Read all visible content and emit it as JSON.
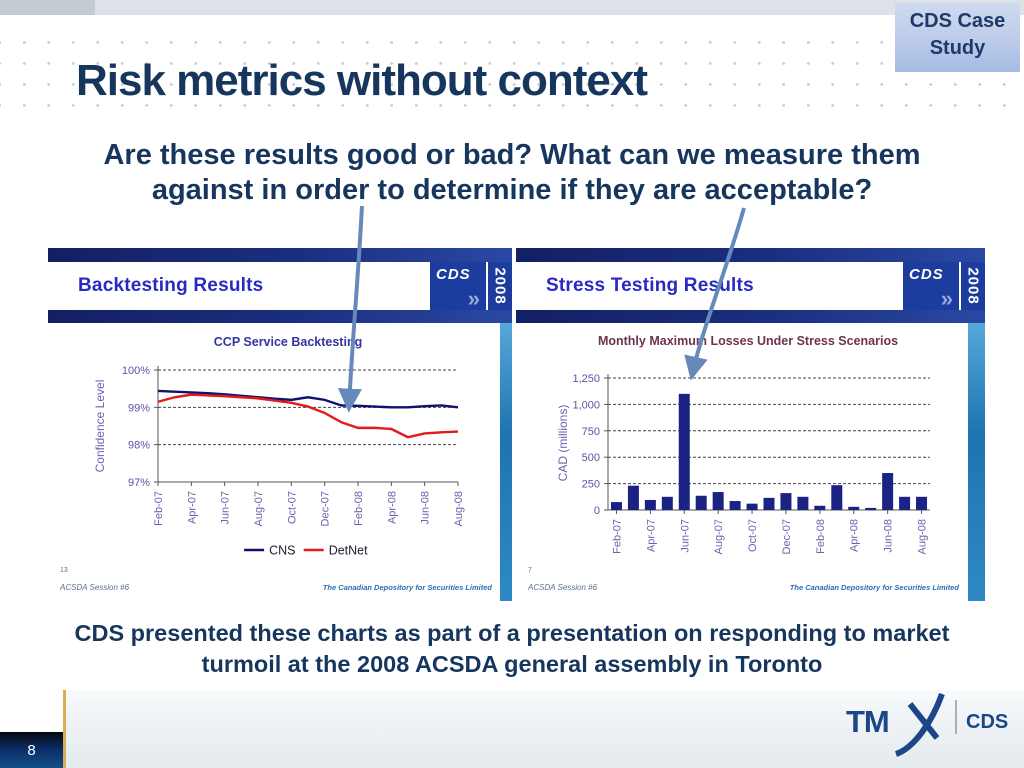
{
  "badge": {
    "label": "CDS Case Study"
  },
  "title": "Risk metrics without context",
  "subtitle": {
    "line1": "Are these results good or bad? What can we measure them",
    "line2": "against in order to determine if they are acceptable?"
  },
  "bottom_note": {
    "line1": "CDS presented these charts as part of a presentation on responding to market",
    "line2": "turmoil at the 2008 ACSDA general assembly in Toronto"
  },
  "slide_number": "8",
  "logo": {
    "tm": "TM",
    "cds": "CDS"
  },
  "panels": [
    {
      "header": "Backtesting Results",
      "brand": "CDS",
      "year": "2008",
      "chevron": "»",
      "page_num": "13",
      "session": "ACSDA Session #6",
      "company": "The Canadian Depository for Securities Limited"
    },
    {
      "header": "Stress Testing Results",
      "brand": "CDS",
      "year": "2008",
      "chevron": "»",
      "page_num": "7",
      "session": "ACSDA Session #6",
      "company": "The Canadian Depository for Securities Limited"
    }
  ],
  "chart_data": [
    {
      "type": "line",
      "title": "CCP Service Backtesting",
      "ylabel": "Confidence Level",
      "ylim": [
        97,
        100
      ],
      "yticks": [
        {
          "v": 100,
          "label": "100%"
        },
        {
          "v": 99,
          "label": "99%"
        },
        {
          "v": 98,
          "label": "98%"
        },
        {
          "v": 97,
          "label": "97%"
        }
      ],
      "categories": [
        "Feb-07",
        "Mar-07",
        "Apr-07",
        "May-07",
        "Jun-07",
        "Jul-07",
        "Aug-07",
        "Sep-07",
        "Oct-07",
        "Nov-07",
        "Dec-07",
        "Jan-08",
        "Feb-08",
        "Mar-08",
        "Apr-08",
        "May-08",
        "Jun-08",
        "Jul-08",
        "Aug-08"
      ],
      "label_every": 2,
      "grid": "dashed",
      "legend_position": "bottom",
      "series": [
        {
          "name": "CNS",
          "color": "#10106e",
          "values": [
            99.44,
            99.42,
            99.4,
            99.38,
            99.35,
            99.31,
            99.27,
            99.23,
            99.2,
            99.27,
            99.2,
            99.05,
            99.04,
            99.02,
            99.0,
            99.0,
            99.03,
            99.05,
            99.0
          ]
        },
        {
          "name": "DetNet",
          "color": "#e11b1b",
          "values": [
            99.15,
            99.27,
            99.34,
            99.32,
            99.3,
            99.27,
            99.24,
            99.18,
            99.12,
            99.02,
            98.85,
            98.6,
            98.45,
            98.45,
            98.42,
            98.2,
            98.3,
            98.33,
            98.35
          ]
        }
      ]
    },
    {
      "type": "bar",
      "title": "Monthly Maximum Losses Under Stress Scenarios",
      "ylabel": "CAD (millions)",
      "ylim": [
        0,
        1250
      ],
      "yticks": [
        {
          "v": 1250,
          "label": "1,250"
        },
        {
          "v": 1000,
          "label": "1,000"
        },
        {
          "v": 750,
          "label": "750"
        },
        {
          "v": 500,
          "label": "500"
        },
        {
          "v": 250,
          "label": "250"
        },
        {
          "v": 0,
          "label": "0"
        }
      ],
      "categories": [
        "Feb-07",
        "Mar-07",
        "Apr-07",
        "May-07",
        "Jun-07",
        "Jul-07",
        "Aug-07",
        "Sep-07",
        "Oct-07",
        "Nov-07",
        "Dec-07",
        "Jan-08",
        "Feb-08",
        "Mar-08",
        "Apr-08",
        "May-08",
        "Jun-08",
        "Jul-08",
        "Aug-08"
      ],
      "label_every": 2,
      "grid": "dashed",
      "bar_color": "#1a2383",
      "values": [
        75,
        230,
        95,
        125,
        1100,
        135,
        170,
        85,
        60,
        115,
        160,
        125,
        40,
        235,
        30,
        20,
        350,
        125,
        125
      ]
    }
  ]
}
